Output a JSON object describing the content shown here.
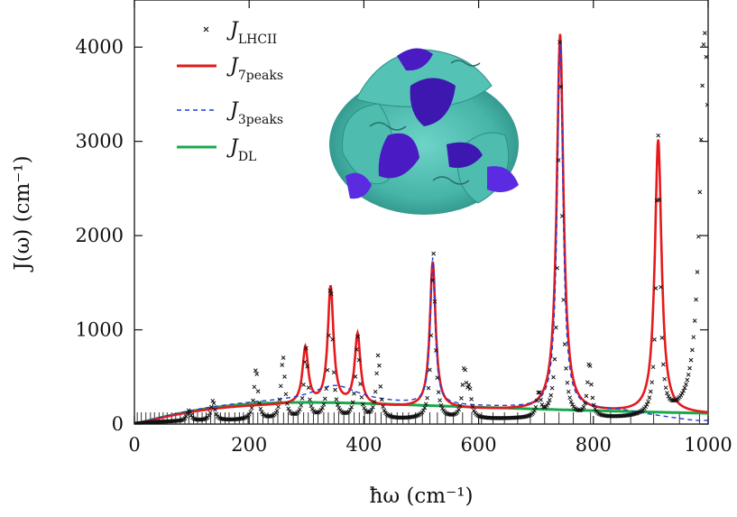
{
  "chart_data": {
    "type": "line",
    "xlabel": "ħω (cm⁻¹)",
    "ylabel": "J(ω) (cm⁻¹)",
    "xlim": [
      0,
      1000
    ],
    "ylim": [
      0,
      4500
    ],
    "x_ticks": [
      0,
      200,
      400,
      600,
      800,
      1000
    ],
    "y_ticks": [
      0,
      1000,
      2000,
      3000,
      4000
    ],
    "x_tick_labels": [
      "0",
      "200",
      "400",
      "600",
      "800",
      "1000"
    ],
    "y_tick_labels": [
      "0",
      "1000",
      "2000",
      "3000",
      "4000"
    ],
    "grid": false,
    "legend_position": "top-left",
    "colors": {
      "lhcii": "#111111",
      "peaks7": "#e41a1c",
      "peaks3": "#1f3fd6",
      "dl": "#1aa84b"
    },
    "legend": [
      {
        "symbol": "J",
        "subscript": "LHCII"
      },
      {
        "symbol": "J",
        "subscript": "7peaks"
      },
      {
        "symbol": "J",
        "subscript": "3peaks"
      },
      {
        "symbol": "J",
        "subscript": "DL"
      }
    ],
    "series": [
      {
        "name": "J_LHCII",
        "style": "markers-x",
        "peaks": [
          {
            "x": 95,
            "y": 110
          },
          {
            "x": 137,
            "y": 210
          },
          {
            "x": 212,
            "y": 540
          },
          {
            "x": 259,
            "y": 660
          },
          {
            "x": 299,
            "y": 740
          },
          {
            "x": 342,
            "y": 1440
          },
          {
            "x": 389,
            "y": 870
          },
          {
            "x": 425,
            "y": 670
          },
          {
            "x": 521,
            "y": 1770
          },
          {
            "x": 575,
            "y": 510
          },
          {
            "x": 584,
            "y": 270
          },
          {
            "x": 705,
            "y": 250
          },
          {
            "x": 742,
            "y": 4080
          },
          {
            "x": 793,
            "y": 580
          },
          {
            "x": 913,
            "y": 2950
          },
          {
            "x": 994,
            "y": 4100
          }
        ],
        "baseline": 50
      },
      {
        "name": "J_7peaks",
        "style": "solid",
        "peaks": [
          {
            "x": 298,
            "y": 600
          },
          {
            "x": 342,
            "y": 1250
          },
          {
            "x": 389,
            "y": 750
          },
          {
            "x": 520,
            "y": 1550
          },
          {
            "x": 742,
            "y": 4000
          },
          {
            "x": 913,
            "y": 2900
          }
        ],
        "background_amplitude": 200
      },
      {
        "name": "J_3peaks",
        "style": "dashed",
        "peaks": [
          {
            "x": 520,
            "y": 1550
          },
          {
            "x": 742,
            "y": 3900
          }
        ],
        "broad_hump": {
          "x": 350,
          "y": 380
        },
        "background_amplitude": 230
      },
      {
        "name": "J_DL",
        "style": "solid",
        "peak_x": 300,
        "peak_y": 230,
        "end_y": 130
      }
    ],
    "rug_positions": [
      5,
      12,
      20,
      28,
      35,
      43,
      50,
      57,
      65,
      72,
      80,
      88,
      95,
      103,
      110,
      118,
      125,
      133,
      140,
      150,
      158,
      165,
      175,
      183,
      190,
      198,
      207,
      215,
      224,
      233,
      242,
      250,
      260,
      268,
      277,
      285,
      295,
      303,
      312,
      320,
      330,
      338,
      348,
      356,
      365,
      374,
      383,
      392,
      401,
      410,
      420,
      430,
      439,
      448,
      458,
      468,
      478,
      490,
      502,
      515,
      528,
      542,
      556,
      572,
      588,
      605,
      625,
      645,
      668,
      690,
      715,
      740,
      765,
      795,
      830,
      865,
      905,
      950,
      985
    ]
  }
}
